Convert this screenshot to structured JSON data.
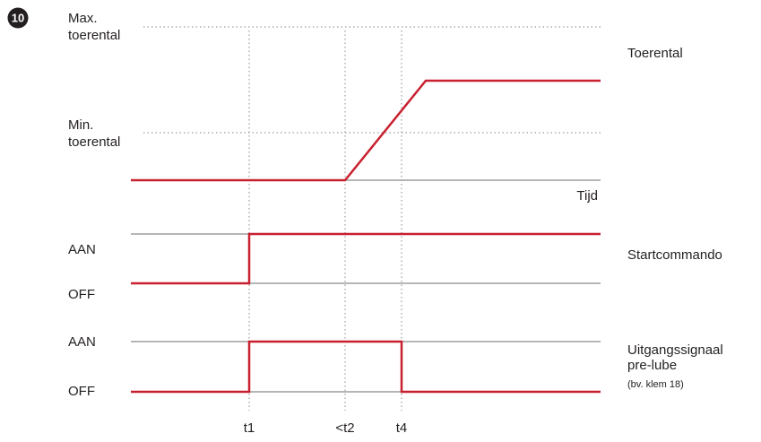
{
  "badge": "10",
  "colors": {
    "signal": "#c8202f",
    "baseline": "#9d9d9d",
    "text": "#231f20",
    "badge": "#231f20"
  },
  "speed_chart": {
    "max_label": [
      "Max.",
      "toerental"
    ],
    "min_label": [
      "Min.",
      "toerental"
    ],
    "axis_label": "Tijd",
    "title": "Toerental"
  },
  "start_chart": {
    "on_label": "AAN",
    "off_label": "OFF",
    "title": "Startcommando"
  },
  "output_chart": {
    "on_label": "AAN",
    "off_label": "OFF",
    "title": [
      "Uitgangssignaal",
      "pre-lube"
    ],
    "note": "(bv. klem 18)"
  },
  "time_markers": [
    "t1",
    "<t2",
    "t4"
  ]
}
